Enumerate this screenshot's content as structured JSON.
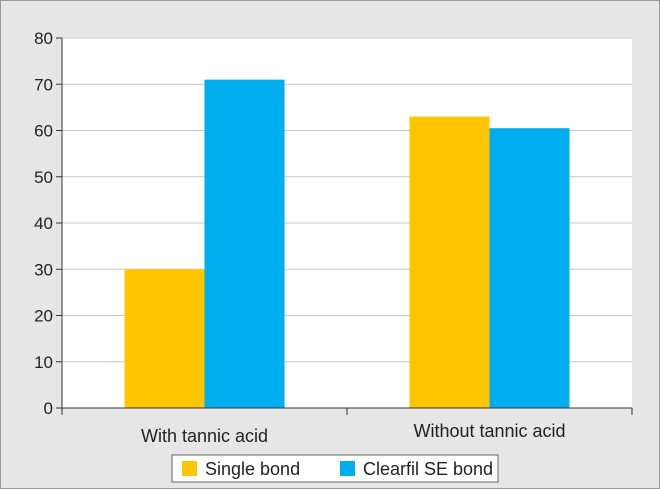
{
  "chart_data": {
    "type": "bar",
    "categories": [
      "With tannic acid",
      "Without tannic acid"
    ],
    "series": [
      {
        "name": "Single bond",
        "values": [
          30,
          63
        ],
        "color": "#FFC600"
      },
      {
        "name": "Clearfil SE bond",
        "values": [
          71,
          60.5
        ],
        "color": "#00ADEF"
      }
    ],
    "ylim": [
      0,
      80
    ],
    "yticks": [
      "0",
      "10",
      "20",
      "30",
      "40",
      "50",
      "60",
      "70",
      "80"
    ],
    "grid": true,
    "legend_position": "bottom-center",
    "frame_color": "#E6E6E6",
    "grid_color": "#C8C8C8"
  }
}
